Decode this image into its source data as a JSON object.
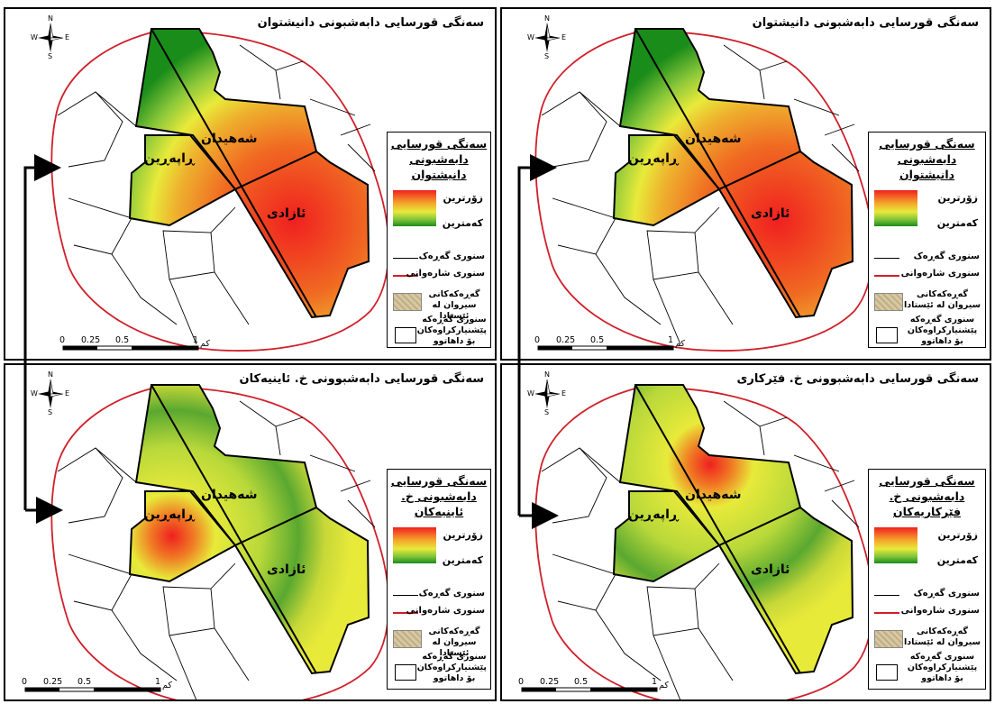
{
  "panels": [
    {
      "title": "سەنگی قورسایی دابەشبونی دانیشتوان",
      "legend_title": "سەنگی قورسایی دابەشبونی دانیشتوان",
      "zones": {
        "north": "شەهیدان",
        "west": "ڕاپەڕین",
        "east": "ئازادی"
      },
      "hotspot": "east"
    },
    {
      "title": "سەنگی قورسایی دابەشبونی دانیشتوان",
      "legend_title": "سەنگی قورسایی دابەشبونی دانیشتوان",
      "zones": {
        "north": "شەهیدان",
        "west": "ڕاپەڕین",
        "east": "ئازادی"
      },
      "hotspot": "east"
    },
    {
      "title": "سەنگی قورسایی دابەشبوونی خ. ئاینیەکان",
      "legend_title": "سەنگی قورسایی دابەشبونی خ. ئاینیەکان",
      "zones": {
        "north": "شەهیدان",
        "west": "ڕاپەڕین",
        "east": "ئازادی"
      },
      "hotspot": "west"
    },
    {
      "title": "سەنگی قورسایی دابەشبوونی خ. فێرکاری",
      "legend_title": "سەنگی قورسایی دابەشبونی خ. فێرکاریەکان",
      "zones": {
        "north": "شەهیدان",
        "west": "ڕاپەڕین",
        "east": "ئازادی"
      },
      "hotspot": "north"
    }
  ],
  "legend": {
    "high": "زۆرترین",
    "low": "کەمترین",
    "quarter_boundary": "سنوری گەڕەک",
    "municipal_boundary": "سنوری شارەوانی",
    "existing_quarters": "گەڕەکەکانی سیروان لە ئێستادا",
    "proposed_quarters": "سنوری گەڕەکە پێشنیارکراوەکان بۆ داهاتوو"
  },
  "compass": {
    "n": "N",
    "s": "S",
    "w": "W",
    "e": "E"
  },
  "scale": {
    "ticks": [
      "0",
      "0.25",
      "0.5",
      "1"
    ],
    "unit": "کم"
  },
  "colors": {
    "high": "#f02020",
    "mid": "#e8ea3a",
    "low": "#1a8c1a",
    "municipal": "#d0202a",
    "quarter": "#000000"
  }
}
